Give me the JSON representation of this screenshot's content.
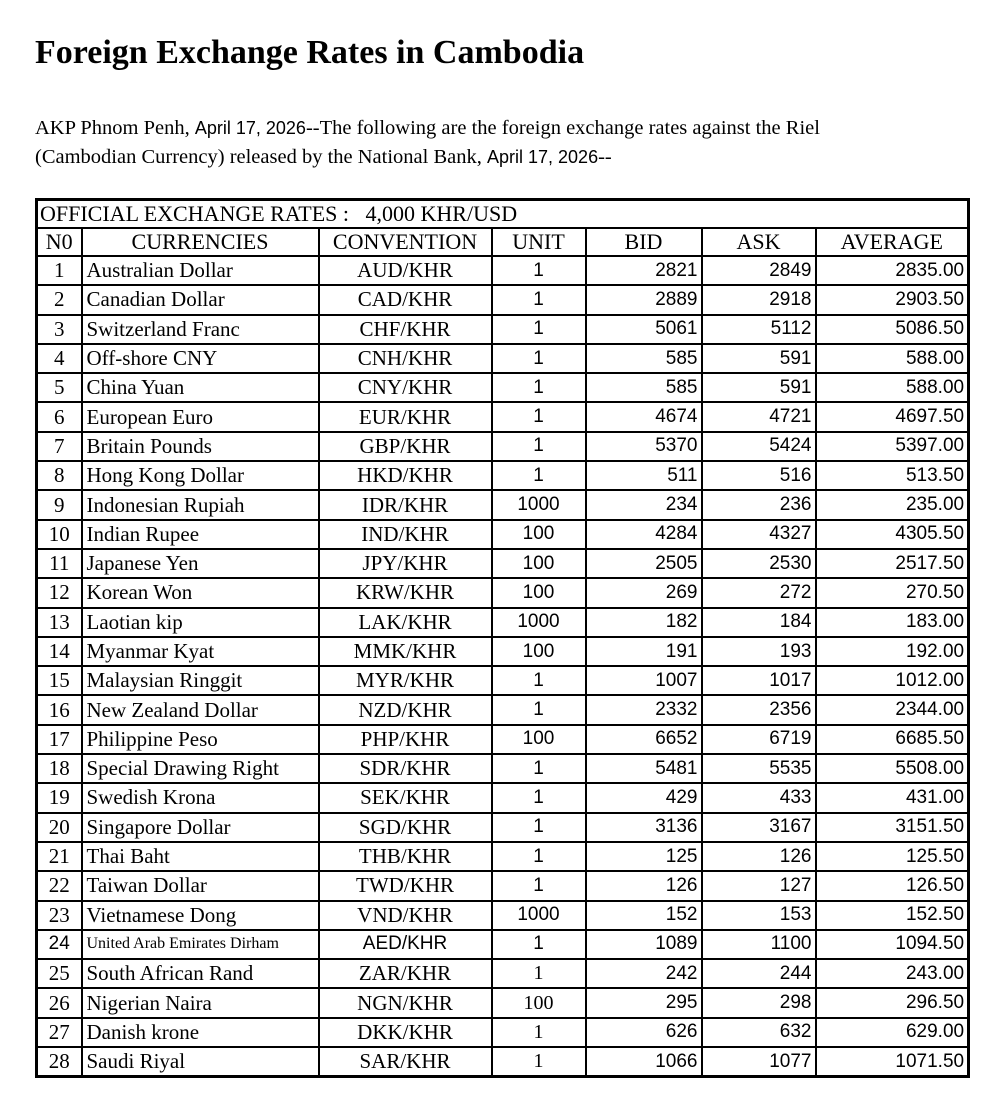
{
  "page": {
    "title": "Foreign Exchange Rates in Cambodia"
  },
  "intro": {
    "lines": [
      {
        "segments": [
          {
            "text": "AKP Phnom Penh, ",
            "style": "serif"
          },
          {
            "text": "April 17, 2026",
            "style": "sans"
          },
          {
            "text": "--The following are the foreign exchange rates against the Riel",
            "style": "serif"
          }
        ]
      },
      {
        "segments": [
          {
            "text": "(Cambodian Currency) released by the National Bank, ",
            "style": "serif"
          },
          {
            "text": "April 17, 2026",
            "style": "sans"
          },
          {
            "text": "--",
            "style": "serif"
          }
        ]
      }
    ]
  },
  "table": {
    "caption": "OFFICIAL EXCHANGE RATES :   4,000 KHR/USD",
    "columns": [
      "N0",
      "CURRENCIES",
      "CONVENTION",
      "UNIT",
      "BID",
      "ASK",
      "AVERAGE"
    ],
    "rows": [
      {
        "no": "1",
        "currency": "Australian Dollar",
        "convention": "AUD/KHR",
        "unit": "1",
        "bid": "2821",
        "ask": "2849",
        "average": "2835.00"
      },
      {
        "no": "2",
        "currency": "Canadian Dollar",
        "convention": "CAD/KHR",
        "unit": "1",
        "bid": "2889",
        "ask": "2918",
        "average": "2903.50"
      },
      {
        "no": "3",
        "currency": "Switzerland Franc",
        "convention": "CHF/KHR",
        "unit": "1",
        "bid": "5061",
        "ask": "5112",
        "average": "5086.50"
      },
      {
        "no": "4",
        "currency": "Off-shore CNY",
        "convention": "CNH/KHR",
        "unit": "1",
        "bid": "585",
        "ask": "591",
        "average": "588.00"
      },
      {
        "no": "5",
        "currency": "China Yuan",
        "convention": "CNY/KHR",
        "unit": "1",
        "bid": "585",
        "ask": "591",
        "average": "588.00"
      },
      {
        "no": "6",
        "currency": "European Euro",
        "convention": "EUR/KHR",
        "unit": "1",
        "bid": "4674",
        "ask": "4721",
        "average": "4697.50"
      },
      {
        "no": "7",
        "currency": "Britain Pounds",
        "convention": "GBP/KHR",
        "unit": "1",
        "bid": "5370",
        "ask": "5424",
        "average": "5397.00"
      },
      {
        "no": "8",
        "currency": "Hong Kong Dollar",
        "convention": "HKD/KHR",
        "unit": "1",
        "bid": "511",
        "ask": "516",
        "average": "513.50"
      },
      {
        "no": "9",
        "currency": "Indonesian Rupiah",
        "convention": "IDR/KHR",
        "unit": "1000",
        "bid": "234",
        "ask": "236",
        "average": "235.00"
      },
      {
        "no": "10",
        "currency": "Indian Rupee",
        "convention": "IND/KHR",
        "unit": "100",
        "bid": "4284",
        "ask": "4327",
        "average": "4305.50"
      },
      {
        "no": "11",
        "currency": "Japanese Yen",
        "convention": "JPY/KHR",
        "unit": "100",
        "bid": "2505",
        "ask": "2530",
        "average": "2517.50"
      },
      {
        "no": "12",
        "currency": "Korean Won",
        "convention": "KRW/KHR",
        "unit": "100",
        "bid": "269",
        "ask": "272",
        "average": "270.50"
      },
      {
        "no": "13",
        "currency": "Laotian kip",
        "convention": "LAK/KHR",
        "unit": "1000",
        "bid": "182",
        "ask": "184",
        "average": "183.00"
      },
      {
        "no": "14",
        "currency": "Myanmar Kyat",
        "convention": "MMK/KHR",
        "unit": "100",
        "bid": "191",
        "ask": "193",
        "average": "192.00"
      },
      {
        "no": "15",
        "currency": "Malaysian Ringgit",
        "convention": "MYR/KHR",
        "unit": "1",
        "bid": "1007",
        "ask": "1017",
        "average": "1012.00"
      },
      {
        "no": "16",
        "currency": "New Zealand Dollar",
        "convention": "NZD/KHR",
        "unit": "1",
        "bid": "2332",
        "ask": "2356",
        "average": "2344.00"
      },
      {
        "no": "17",
        "currency": "Philippine Peso",
        "convention": "PHP/KHR",
        "unit": "100",
        "bid": "6652",
        "ask": "6719",
        "average": "6685.50"
      },
      {
        "no": "18",
        "currency": "Special Drawing Right",
        "convention": "SDR/KHR",
        "unit": "1",
        "bid": "5481",
        "ask": "5535",
        "average": "5508.00"
      },
      {
        "no": "19",
        "currency": "Swedish Krona",
        "convention": "SEK/KHR",
        "unit": "1",
        "bid": "429",
        "ask": "433",
        "average": "431.00"
      },
      {
        "no": "20",
        "currency": "Singapore Dollar",
        "convention": "SGD/KHR",
        "unit": "1",
        "bid": "3136",
        "ask": "3167",
        "average": "3151.50"
      },
      {
        "no": "21",
        "currency": "Thai Baht",
        "convention": "THB/KHR",
        "unit": "1",
        "bid": "125",
        "ask": "126",
        "average": "125.50"
      },
      {
        "no": "22",
        "currency": "Taiwan Dollar",
        "convention": "TWD/KHR",
        "unit": "1",
        "bid": "126",
        "ask": "127",
        "average": "126.50"
      },
      {
        "no": "23",
        "currency": "Vietnamese Dong",
        "convention": "VND/KHR",
        "unit": "1000",
        "bid": "152",
        "ask": "153",
        "average": "152.50"
      },
      {
        "no": "24",
        "currency": "United Arab Emirates Dirham",
        "convention": "AED/KHR",
        "unit": "1",
        "bid": "1089",
        "ask": "1100",
        "average": "1094.50"
      },
      {
        "no": "25",
        "currency": "South African Rand",
        "convention": "ZAR/KHR",
        "unit": "1",
        "bid": "242",
        "ask": "244",
        "average": "243.00"
      },
      {
        "no": "26",
        "currency": "Nigerian Naira",
        "convention": "NGN/KHR",
        "unit": "100",
        "bid": "295",
        "ask": "298",
        "average": "296.50"
      },
      {
        "no": "27",
        "currency": "Danish krone",
        "convention": "DKK/KHR",
        "unit": "1",
        "bid": "626",
        "ask": "632",
        "average": "629.00"
      },
      {
        "no": "28",
        "currency": "Saudi Riyal",
        "convention": "SAR/KHR",
        "unit": "1",
        "bid": "1066",
        "ask": "1077",
        "average": "1071.50"
      }
    ]
  }
}
